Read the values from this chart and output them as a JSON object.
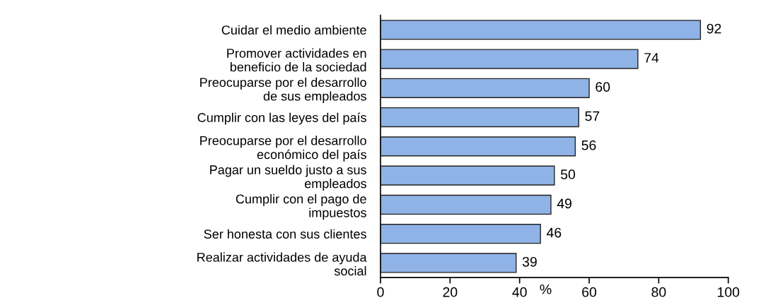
{
  "chart_data": {
    "type": "bar",
    "orientation": "horizontal",
    "xlabel": "%",
    "categories": [
      "Cuidar el medio ambiente",
      "Promover actividades en\nbeneficio de la sociedad",
      "Preocuparse por el desarrollo\nde sus empleados",
      "Cumplir con las leyes del país",
      "Preocuparse por el desarrollo\neconómico del país",
      "Pagar un sueldo justo a sus\nempleados",
      "Cumplir con el pago de\nimpuestos",
      "Ser honesta con sus clientes",
      "Realizar actividades de ayuda\nsocial"
    ],
    "values": [
      92,
      74,
      60,
      57,
      56,
      50,
      49,
      46,
      39
    ],
    "color": "#8fb3e6",
    "xlim": [
      0,
      100
    ],
    "xticks": [
      0,
      20,
      40,
      60,
      80,
      100
    ],
    "data_labels": true,
    "grid": false,
    "legend": false
  }
}
